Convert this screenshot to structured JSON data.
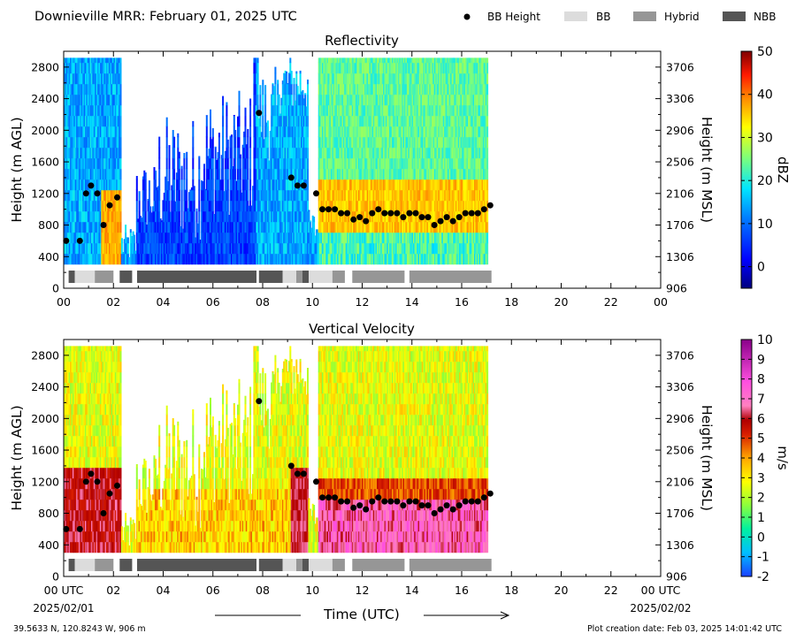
{
  "header": {
    "title": "Downieville MRR:  February 01, 2025 UTC",
    "legend": [
      {
        "label": "BB Height",
        "marker": "dot",
        "color": "#000000"
      },
      {
        "label": "BB",
        "marker": "box",
        "color": "#dcdcdc"
      },
      {
        "label": "Hybrid",
        "marker": "box",
        "color": "#969696"
      },
      {
        "label": "NBB",
        "marker": "box",
        "color": "#555555"
      }
    ]
  },
  "footer": {
    "location": "39.5633 N, 120.8243 W, 906 m",
    "creation_date": "Plot creation date: Feb 03, 2025 14:01:42 UTC",
    "xlabel": "Time (UTC)",
    "start_date": "2025/02/01",
    "end_date": "2025/02/02"
  },
  "chart_data": [
    {
      "type": "heatmap",
      "title": "Reflectivity",
      "ylabel": "Height (m AGL)",
      "ylabel_right": "Height (m MSL)",
      "colorbar_label": "dBZ",
      "colorbar_range": [
        -5,
        50
      ],
      "colorbar_ticks": [
        "50",
        "40",
        "30",
        "20",
        "10",
        "0"
      ],
      "colorbar_tick_values": [
        50,
        40,
        30,
        20,
        10,
        0
      ],
      "xlim": [
        0,
        24
      ],
      "ylim": [
        0,
        3000
      ],
      "x_ticks": [
        "00",
        "02",
        "04",
        "06",
        "08",
        "10",
        "12",
        "14",
        "16",
        "18",
        "20",
        "22",
        "00"
      ],
      "y_ticks": [
        "0",
        "400",
        "800",
        "1200",
        "1600",
        "2000",
        "2400",
        "2800"
      ],
      "y_ticks_right": [
        "906",
        "1306",
        "1706",
        "2106",
        "2506",
        "2906",
        "3306",
        "3706"
      ]
    },
    {
      "type": "heatmap",
      "title": "Vertical Velocity",
      "ylabel": "Height (m AGL)",
      "ylabel_right": "Height (m MSL)",
      "colorbar_label": "m/s",
      "colorbar_range": [
        -2,
        10
      ],
      "colorbar_ticks": [
        "10",
        "9",
        "8",
        "7",
        "6",
        "5",
        "4",
        "3",
        "2",
        "1",
        "0",
        "-1",
        "-2"
      ],
      "colorbar_tick_values": [
        10,
        9,
        8,
        7,
        6,
        5,
        4,
        3,
        2,
        1,
        0,
        -1,
        -2
      ],
      "xlim": [
        0,
        24
      ],
      "ylim": [
        0,
        3000
      ],
      "x_ticks": [
        "00 UTC",
        "02",
        "04",
        "06",
        "08",
        "10",
        "12",
        "14",
        "16",
        "18",
        "20",
        "22",
        "00 UTC"
      ],
      "y_ticks": [
        "0",
        "400",
        "800",
        "1200",
        "1600",
        "2000",
        "2400",
        "2800"
      ],
      "y_ticks_right": [
        "906",
        "1306",
        "1706",
        "2106",
        "2506",
        "2906",
        "3306",
        "3706"
      ]
    }
  ],
  "bb_height": [
    [
      0.1,
      600
    ],
    [
      0.65,
      600
    ],
    [
      0.9,
      1200
    ],
    [
      1.1,
      1300
    ],
    [
      1.35,
      1200
    ],
    [
      1.6,
      800
    ],
    [
      1.85,
      1050
    ],
    [
      2.15,
      1150
    ],
    [
      7.85,
      2220
    ],
    [
      9.15,
      1400
    ],
    [
      9.4,
      1300
    ],
    [
      9.65,
      1300
    ],
    [
      10.15,
      1200
    ],
    [
      10.4,
      1000
    ],
    [
      10.65,
      1000
    ],
    [
      10.9,
      1000
    ],
    [
      11.15,
      950
    ],
    [
      11.4,
      950
    ],
    [
      11.65,
      870
    ],
    [
      11.9,
      900
    ],
    [
      12.15,
      850
    ],
    [
      12.4,
      950
    ],
    [
      12.65,
      1000
    ],
    [
      12.9,
      950
    ],
    [
      13.15,
      950
    ],
    [
      13.4,
      950
    ],
    [
      13.65,
      900
    ],
    [
      13.9,
      950
    ],
    [
      14.15,
      950
    ],
    [
      14.4,
      900
    ],
    [
      14.65,
      900
    ],
    [
      14.9,
      800
    ],
    [
      15.15,
      850
    ],
    [
      15.4,
      900
    ],
    [
      15.65,
      850
    ],
    [
      15.9,
      900
    ],
    [
      16.15,
      950
    ],
    [
      16.4,
      950
    ],
    [
      16.65,
      950
    ],
    [
      16.9,
      1000
    ],
    [
      17.15,
      1050
    ]
  ],
  "bb_class_bar": [
    {
      "start": 0.2,
      "end": 0.45,
      "class": "NBB"
    },
    {
      "start": 0.45,
      "end": 1.25,
      "class": "BB"
    },
    {
      "start": 1.25,
      "end": 2.0,
      "class": "Hybrid"
    },
    {
      "start": 2.25,
      "end": 2.75,
      "class": "NBB"
    },
    {
      "start": 2.95,
      "end": 7.75,
      "class": "NBB"
    },
    {
      "start": 7.85,
      "end": 8.8,
      "class": "NBB"
    },
    {
      "start": 8.8,
      "end": 9.35,
      "class": "BB"
    },
    {
      "start": 9.35,
      "end": 9.6,
      "class": "Hybrid"
    },
    {
      "start": 9.6,
      "end": 9.85,
      "class": "NBB"
    },
    {
      "start": 9.85,
      "end": 10.8,
      "class": "BB"
    },
    {
      "start": 10.8,
      "end": 11.3,
      "class": "Hybrid"
    },
    {
      "start": 11.6,
      "end": 13.7,
      "class": "Hybrid"
    },
    {
      "start": 13.9,
      "end": 17.2,
      "class": "Hybrid"
    }
  ]
}
